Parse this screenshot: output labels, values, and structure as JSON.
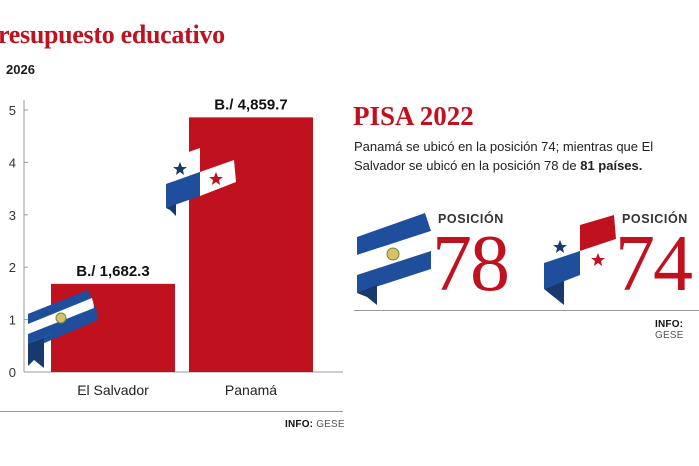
{
  "header": {
    "title": "resupuesto educativo",
    "subtitle": "2026"
  },
  "chart_data": {
    "type": "bar",
    "categories": [
      "El Salvador",
      "Panamá"
    ],
    "values": [
      1682.3,
      4859.7
    ],
    "value_labels": [
      "B./ 1,682.3",
      "B./ 4,859.7"
    ],
    "y_ticks": [
      "0",
      "1",
      "2",
      "3",
      "4",
      "5"
    ],
    "ylim": [
      0,
      5000
    ],
    "bar_color": "#c0111f",
    "grid": false
  },
  "info_left": {
    "prefix": "INFO:",
    "source": "GESE"
  },
  "pisa": {
    "title": "PISA 2022",
    "text_main": "Panamá se ubicó en la posición 74; mientras que El Salvador se ubicó en la posición 78 de ",
    "text_bold": "81 países.",
    "positions": [
      {
        "country": "El Salvador",
        "label": "POSICIÓN",
        "number": "78"
      },
      {
        "country": "Panamá",
        "label": "POSICIÓN",
        "number": "74"
      }
    ]
  },
  "info_right": {
    "prefix": "INFO:",
    "source": "GESE"
  },
  "colors": {
    "accent": "#c0111f",
    "salvador_blue": "#1f4f9c",
    "panama_blue": "#1f4f9c"
  },
  "icons": [
    "el-salvador-flag-icon",
    "panama-flag-icon"
  ]
}
